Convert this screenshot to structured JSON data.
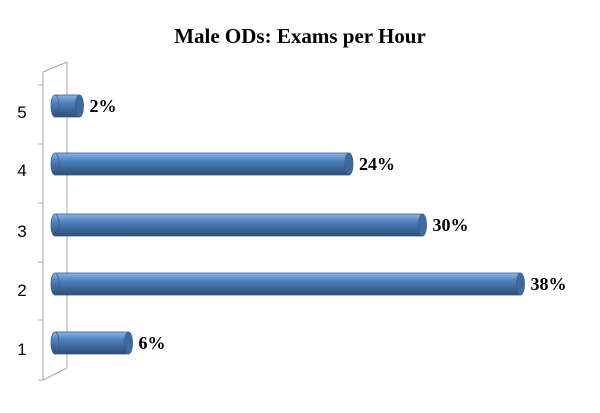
{
  "chart_data": {
    "type": "bar",
    "orientation": "horizontal",
    "style": "3d-cylinder",
    "title": "Male ODs: Exams per Hour",
    "categories": [
      "1",
      "2",
      "3",
      "4",
      "5"
    ],
    "values": [
      6,
      38,
      30,
      24,
      2
    ],
    "value_labels": [
      "6%",
      "38%",
      "30%",
      "24%",
      "2%"
    ],
    "xlim": [
      0,
      40
    ],
    "grid": false,
    "legend": "none",
    "colors": {
      "bar_top": "#8fb4e3",
      "bar_mid": "#4f81bd",
      "bar_bottom": "#2c4d75",
      "bar_cap": "#3f6aa0",
      "bar_outline": "#385d8a",
      "axis": "#a6a6a6"
    }
  }
}
